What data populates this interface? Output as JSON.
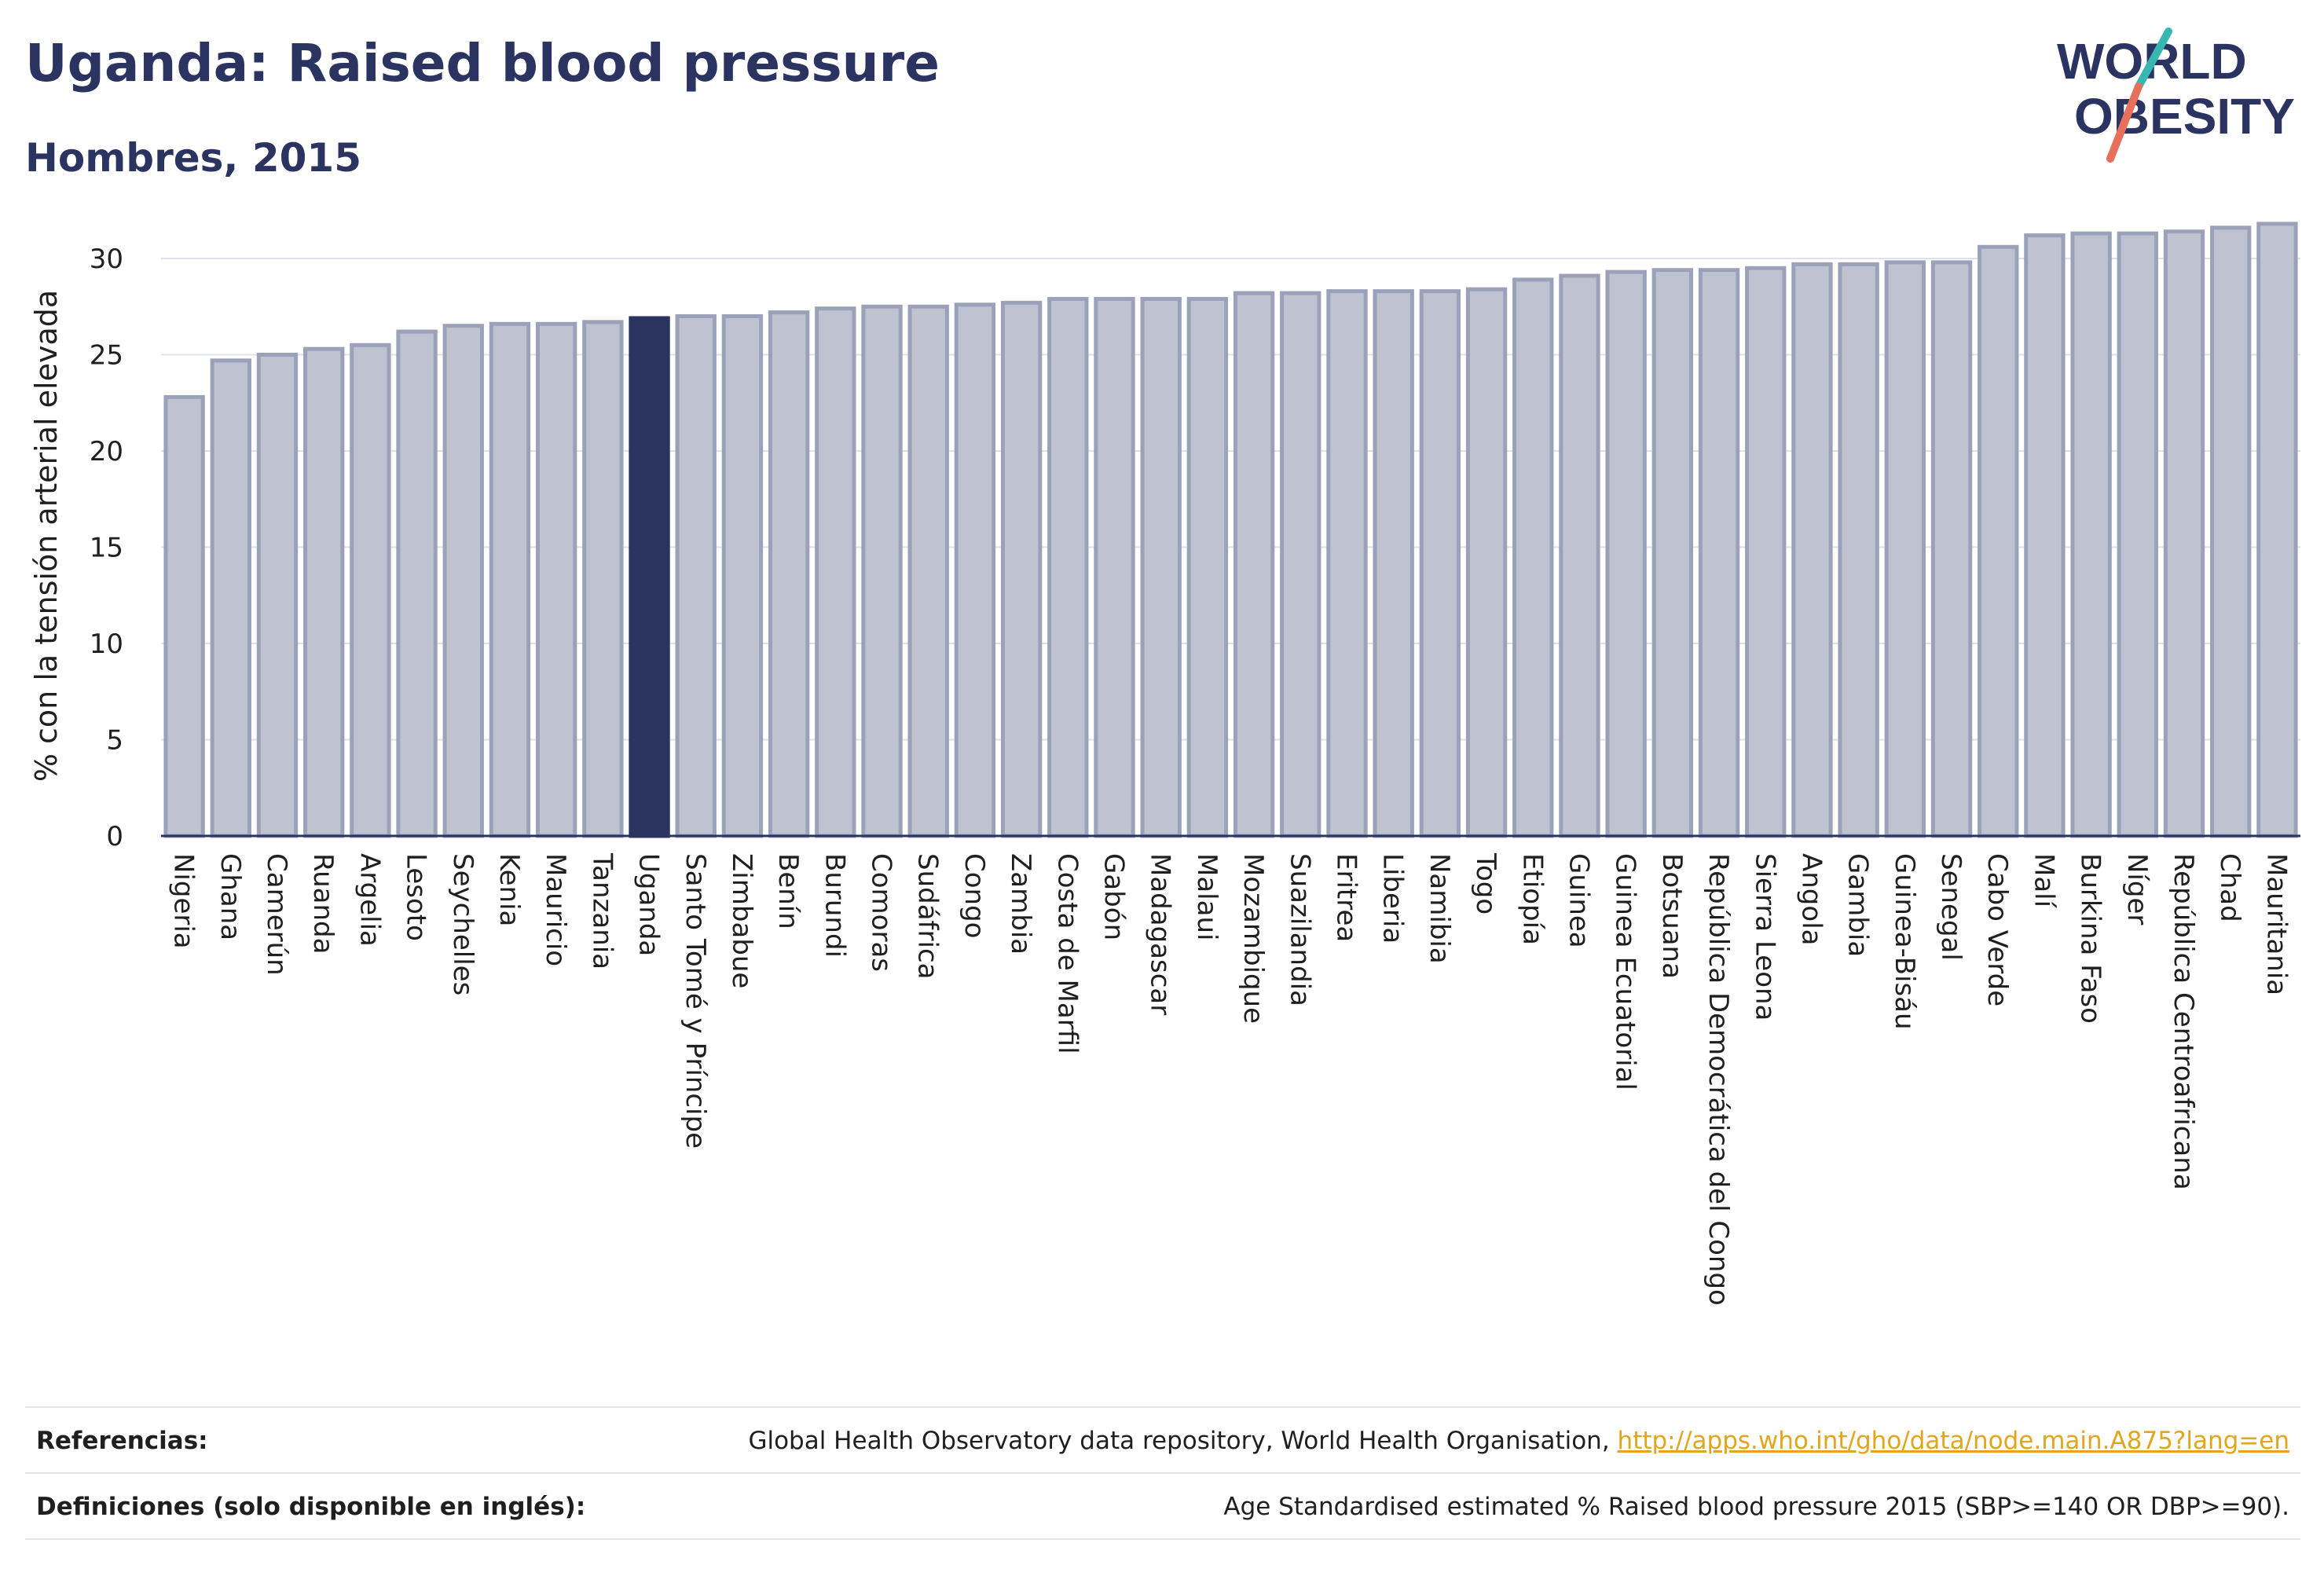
{
  "header": {
    "title": "Uganda: Raised blood pressure",
    "subtitle": "Hombres, 2015"
  },
  "logo": {
    "line1": "WORLD",
    "line2": "OBESITY"
  },
  "colors": {
    "highlight_bar": "#2b3461",
    "bar_fill": "#bfc3d1",
    "bar_stroke": "#9ba1b8",
    "grid": "#dfe1e8",
    "logo_text": "#2b3461",
    "logo_teal": "#38b6b2",
    "logo_coral": "#e8705b"
  },
  "chart_data": {
    "type": "bar",
    "highlight": "Uganda",
    "ylabel": "% con la tensión arterial elevada",
    "ylim": [
      0,
      32
    ],
    "yticks": [
      0,
      5,
      10,
      15,
      20,
      25,
      30
    ],
    "grid": true,
    "categories": [
      "Nigeria",
      "Ghana",
      "Camerún",
      "Ruanda",
      "Argelia",
      "Lesoto",
      "Seychelles",
      "Kenia",
      "Mauricio",
      "Tanzania",
      "Uganda",
      "Santo Tomé y Príncipe",
      "Zimbabue",
      "Benín",
      "Burundi",
      "Comoras",
      "Sudáfrica",
      "Congo",
      "Zambia",
      "Costa de Marfil",
      "Gabón",
      "Madagascar",
      "Malaui",
      "Mozambique",
      "Suazilandia",
      "Eritrea",
      "Liberia",
      "Namibia",
      "Togo",
      "Etiopía",
      "Guinea",
      "Guinea Ecuatorial",
      "Botsuana",
      "República Democrática del Congo",
      "Sierra Leona",
      "Angola",
      "Gambia",
      "Guinea-Bisáu",
      "Senegal",
      "Cabo Verde",
      "Malí",
      "Burkina Faso",
      "Níger",
      "República Centroafricana",
      "Chad",
      "Mauritania"
    ],
    "values": [
      22.8,
      24.7,
      25.0,
      25.3,
      25.5,
      26.2,
      26.5,
      26.6,
      26.6,
      26.7,
      26.9,
      27.0,
      27.0,
      27.2,
      27.4,
      27.5,
      27.5,
      27.6,
      27.7,
      27.9,
      27.9,
      27.9,
      27.9,
      28.2,
      28.2,
      28.3,
      28.3,
      28.3,
      28.4,
      28.9,
      29.1,
      29.3,
      29.4,
      29.4,
      29.5,
      29.7,
      29.7,
      29.8,
      29.8,
      30.6,
      31.2,
      31.3,
      31.3,
      31.4,
      31.6,
      31.8
    ]
  },
  "references": {
    "ref_label": "Referencias:",
    "ref_text": "Global Health Observatory data repository, World Health Organisation, ",
    "ref_link": "http://apps.who.int/gho/data/node.main.A875?lang=en",
    "def_label": "Definiciones (solo disponible en inglés):",
    "def_text": "Age Standardised estimated % Raised blood pressure 2015 (SBP>=140 OR DBP>=90)."
  }
}
